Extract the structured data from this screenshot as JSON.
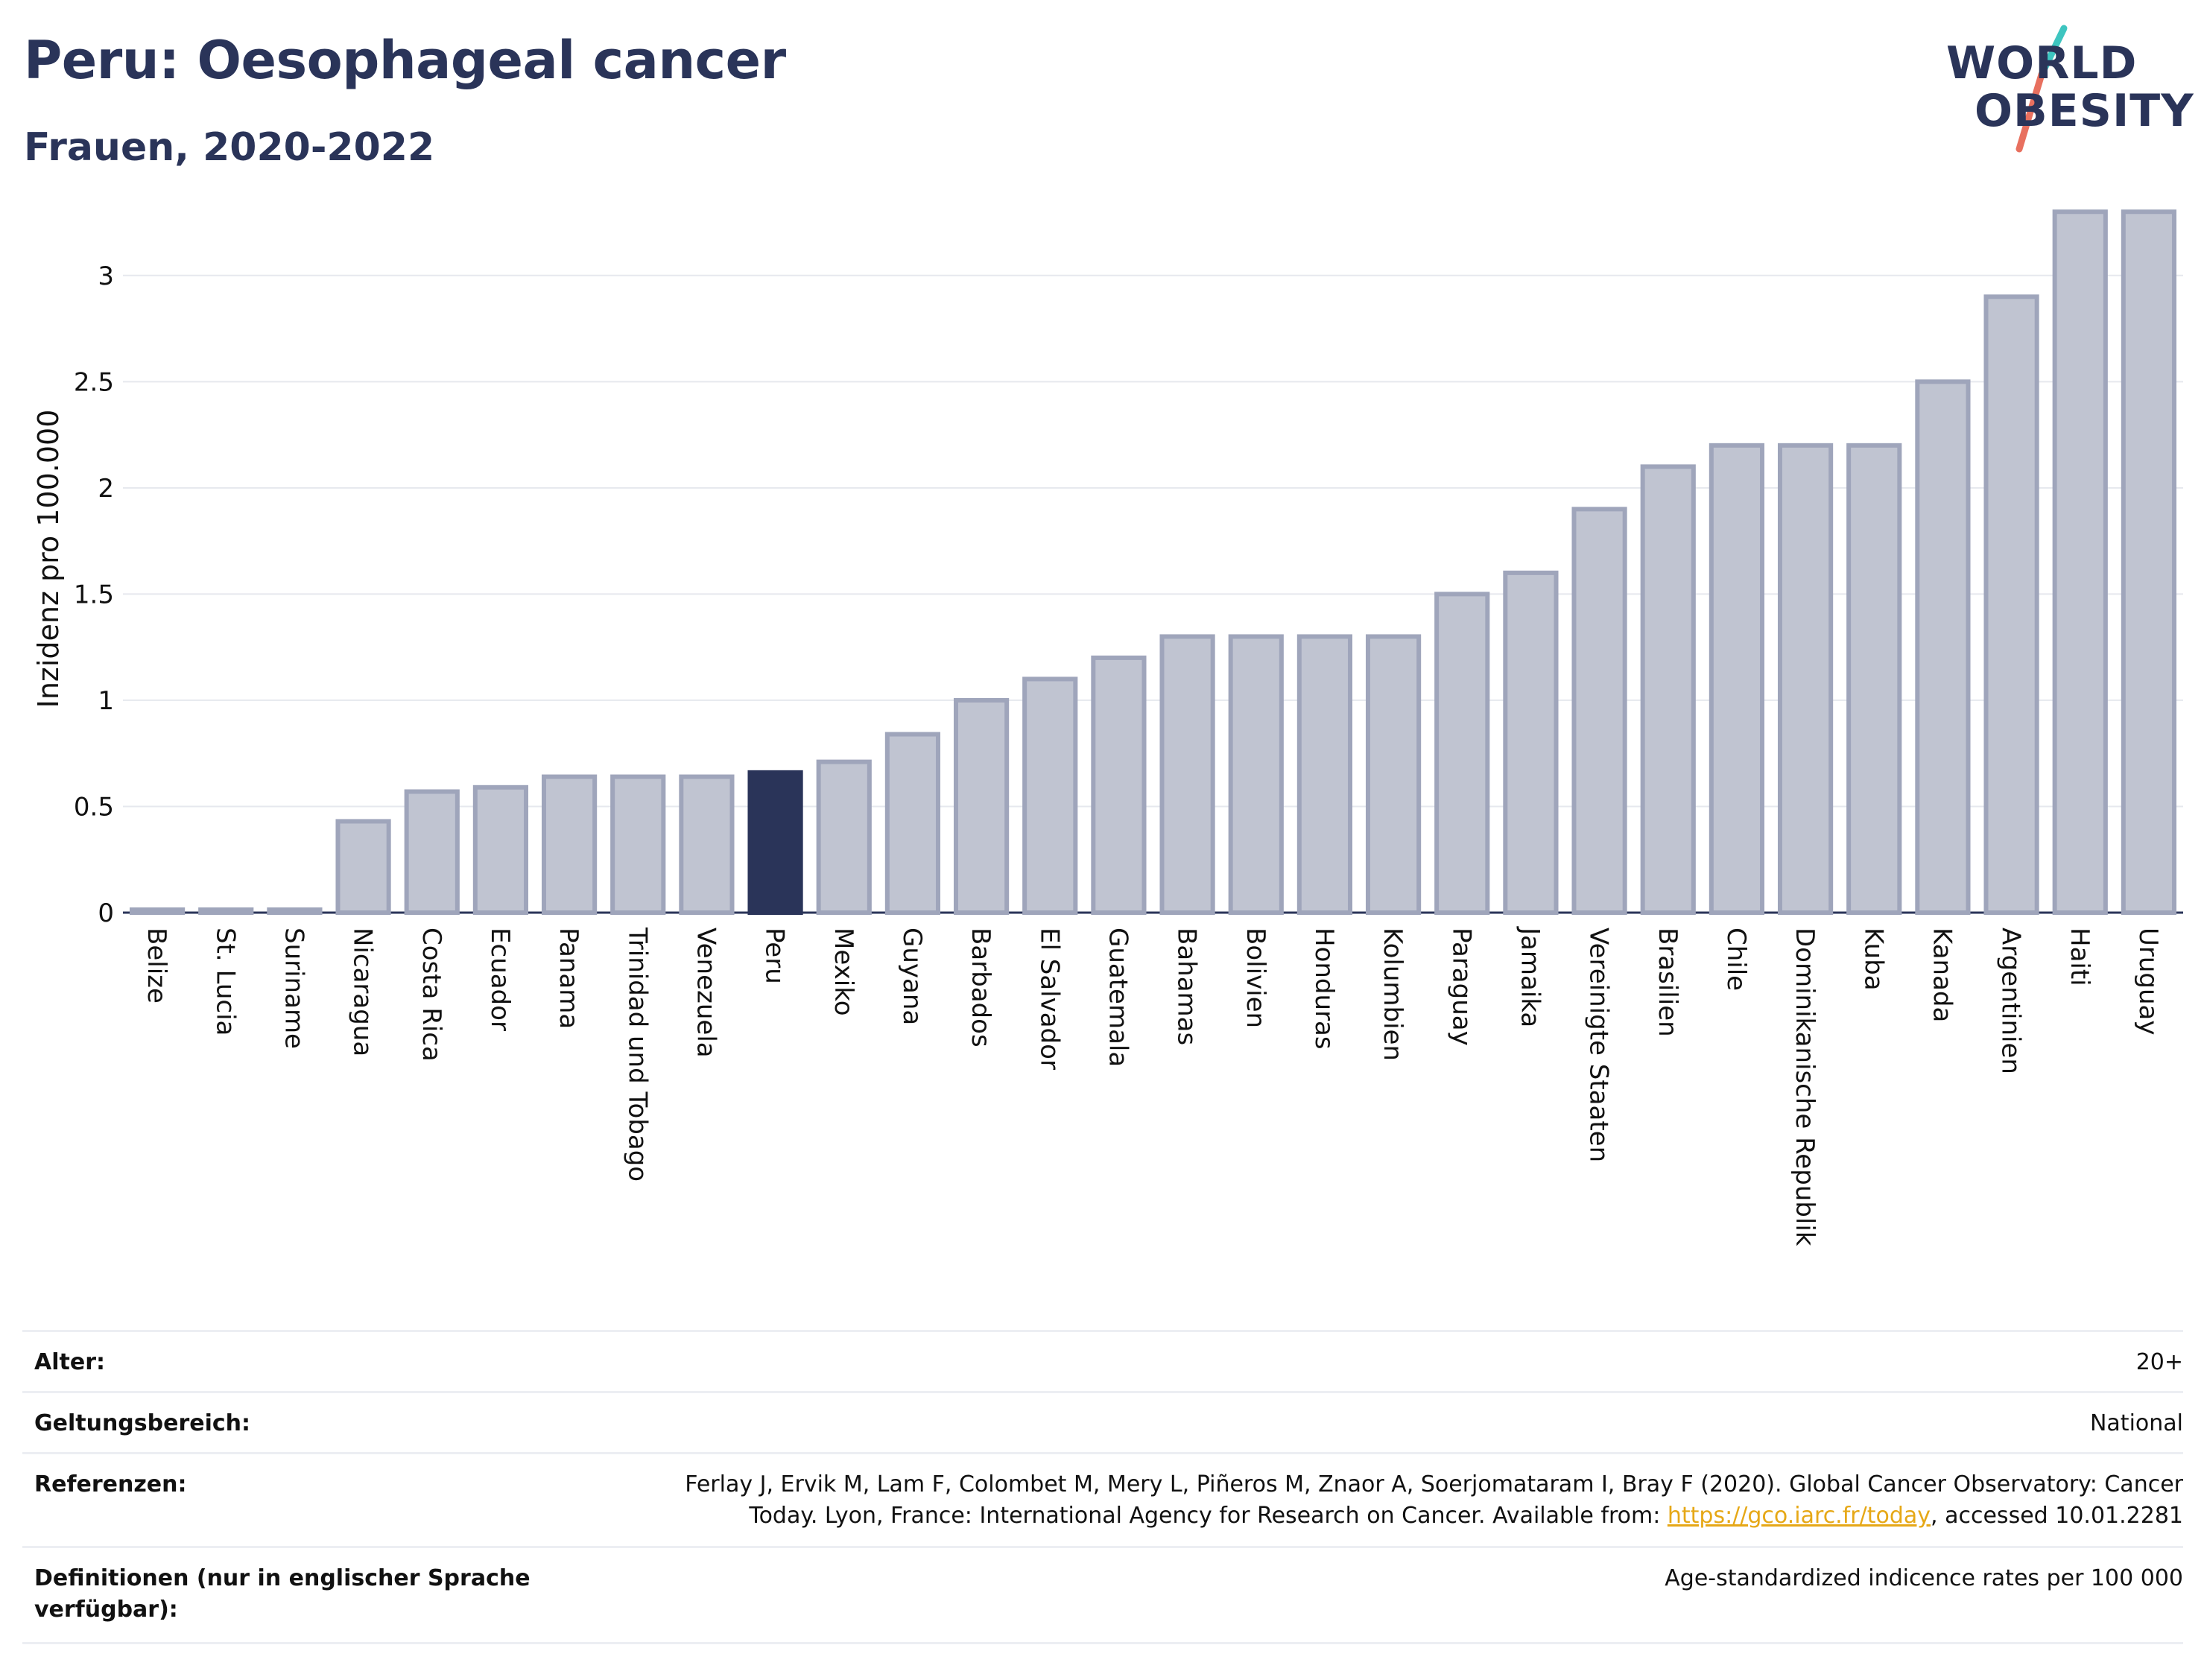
{
  "header": {
    "title": "Peru: Oesophageal cancer",
    "subtitle": "Frauen, 2020-2022"
  },
  "logo": {
    "line1": "WORLD",
    "line2": "OBESITY",
    "accent_teal": "#3ec5c0",
    "accent_red": "#e8705f"
  },
  "colors": {
    "bar": "#c0c4d1",
    "bar_stroke": "#9fa5bb",
    "highlight": "#2a3459",
    "grid": "#e6e8ee",
    "axis": "#2a3459"
  },
  "chart_data": {
    "type": "bar",
    "ylabel": "Inzidenz pro 100.000",
    "xlabel": "",
    "ylim": [
      0,
      3.35
    ],
    "yticks": [
      0,
      0.5,
      1,
      1.5,
      2,
      2.5,
      3
    ],
    "ytick_labels": [
      "0",
      "0.5",
      "1",
      "1.5",
      "2",
      "2.5",
      "3"
    ],
    "grid": true,
    "highlight_category": "Peru",
    "categories": [
      "Belize",
      "St. Lucia",
      "Suriname",
      "Nicaragua",
      "Costa Rica",
      "Ecuador",
      "Panama",
      "Trinidad und Tobago",
      "Venezuela",
      "Peru",
      "Mexiko",
      "Guyana",
      "Barbados",
      "El Salvador",
      "Guatemala",
      "Bahamas",
      "Bolivien",
      "Honduras",
      "Kolumbien",
      "Paraguay",
      "Jamaika",
      "Vereinigte Staaten",
      "Brasilien",
      "Chile",
      "Dominikanische Republik",
      "Kuba",
      "Kanada",
      "Argentinien",
      "Haiti",
      "Uruguay"
    ],
    "values": [
      0.0,
      0.0,
      0.0,
      0.43,
      0.57,
      0.59,
      0.64,
      0.64,
      0.64,
      0.66,
      0.71,
      0.84,
      1.0,
      1.1,
      1.2,
      1.3,
      1.3,
      1.3,
      1.3,
      1.5,
      1.6,
      1.9,
      2.1,
      2.2,
      2.2,
      2.2,
      2.5,
      2.9,
      3.3,
      3.3
    ]
  },
  "meta": {
    "age_label": "Alter:",
    "age_value": "20+",
    "scope_label": "Geltungsbereich:",
    "scope_value": "National",
    "refs_label": "Referenzen:",
    "refs_line1": "Ferlay J, Ervik M, Lam F, Colombet M, Mery L, Piñeros M, Znaor A, Soerjomataram I, Bray F (2020). Global Cancer Observatory: Cancer",
    "refs_line2_pre": "Today. Lyon, France: International Agency for Research on Cancer. Available from: ",
    "refs_link": "https://gco.iarc.fr/today",
    "refs_line2_post": ", accessed 10.01.2281",
    "defs_label_1": "Definitionen (nur in englischer Sprache",
    "defs_label_2": "verfügbar):",
    "defs_value": "Age-standardized indicence rates per 100 000"
  }
}
